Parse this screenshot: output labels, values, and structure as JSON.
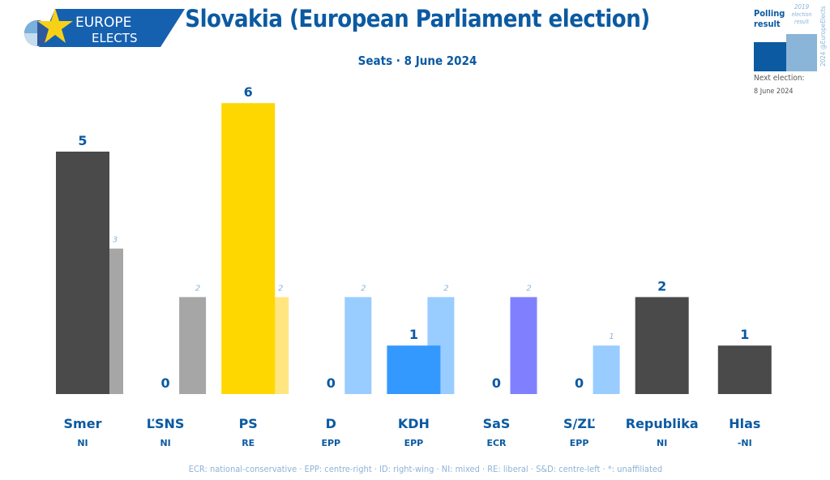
{
  "logo": {
    "line1": "EUROPE",
    "line2": "ELECTS"
  },
  "title": "Slovakia (European Parliament election)",
  "subtitle": "Seats · 8 June 2024",
  "legend": {
    "current": "Polling result",
    "previous_year": "2019",
    "previous": "election result",
    "credit": "2024 @EuropeElects",
    "next_label": "Next election:",
    "next_date": "8 June 2024"
  },
  "footer": "ECR: national-conservative · EPP: centre-right · ID: right-wing · NI: mixed · RE: liberal · S&D: centre-left · *: unaffiliated",
  "chart_data": {
    "type": "bar",
    "categories": [
      "Smer",
      "ĽSNS",
      "PS",
      "D",
      "KDH",
      "SaS",
      "S/ZĽ",
      "Republika",
      "Hlas"
    ],
    "groups": [
      "NI",
      "NI",
      "RE",
      "EPP",
      "EPP",
      "ECR",
      "EPP",
      "NI",
      "-NI"
    ],
    "series": [
      {
        "name": "Polling result",
        "values": [
          5,
          0,
          6,
          0,
          1,
          0,
          0,
          2,
          1
        ]
      },
      {
        "name": "2019 election result",
        "values": [
          3,
          2,
          2,
          2,
          2,
          2,
          1,
          null,
          null
        ]
      }
    ],
    "colors": [
      "#4a4a4a",
      "#a6a6a6",
      "#ffd700",
      "#99ccff",
      "#3399ff",
      "#8080ff",
      "#99ccff",
      "#4a4a4a",
      "#4a4a4a"
    ],
    "previous_colors": [
      "#a6a6a6",
      "#a6a6a6",
      "#ffe680",
      "#99ccff",
      "#99ccff",
      "#8080ff",
      "#99ccff",
      null,
      null
    ],
    "ylim": [
      0,
      6
    ]
  }
}
